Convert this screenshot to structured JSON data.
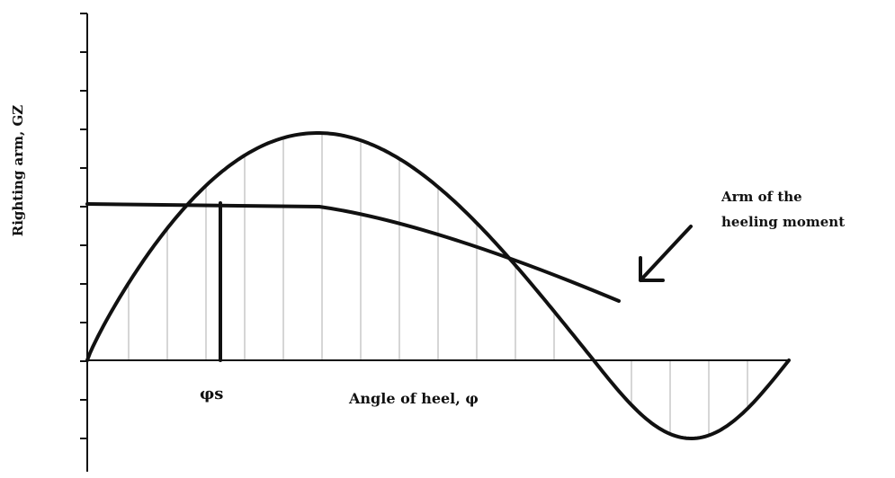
{
  "axis_labels": {
    "y": "Righting arm, GZ",
    "x": "Angle of heel, φ"
  },
  "marker_label": "φs",
  "annotation": {
    "lines": [
      "Arm of the",
      "heeling moment"
    ]
  }
}
